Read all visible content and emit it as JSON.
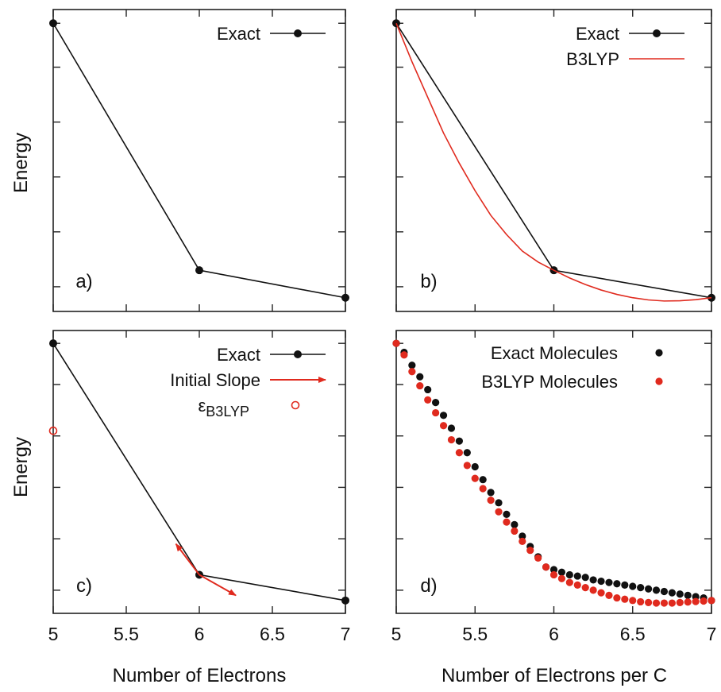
{
  "figure": {
    "ylabel_top": "Energy",
    "ylabel_bottom": "Energy",
    "xlabel_left": "Number of Electrons",
    "xlabel_right": "Number of Electrons per C"
  },
  "colors": {
    "exact": "#111111",
    "b3lyp": "#e02a1e",
    "frame": "#222222"
  },
  "chart_data": [
    {
      "panel": "a)",
      "type": "line",
      "title": "",
      "xlabel": "",
      "ylabel": "Energy",
      "xlim": [
        5,
        7
      ],
      "ylim": [
        -0.05,
        1.05
      ],
      "x_ticks": [
        5,
        5.5,
        6,
        6.5,
        7
      ],
      "x_tick_labels_shown": false,
      "y_ticks": [
        0.04,
        0.24,
        0.44,
        0.64,
        0.84,
        1.0
      ],
      "y_tick_labels_shown": false,
      "legend": {
        "position": "top-right",
        "entries": [
          "Exact"
        ]
      },
      "series": [
        {
          "name": "Exact",
          "color": "#111111",
          "x": [
            5,
            6,
            7
          ],
          "y": [
            1.0,
            0.1,
            0.0
          ]
        }
      ]
    },
    {
      "panel": "b)",
      "type": "line",
      "title": "",
      "xlabel": "",
      "ylabel": "",
      "xlim": [
        5,
        7
      ],
      "ylim": [
        -0.05,
        1.05
      ],
      "x_ticks": [
        5,
        5.5,
        6,
        6.5,
        7
      ],
      "x_tick_labels_shown": false,
      "y_ticks": [
        0.04,
        0.24,
        0.44,
        0.64,
        0.84,
        1.0
      ],
      "y_tick_labels_shown": false,
      "legend": {
        "position": "top-right",
        "entries": [
          "Exact",
          "B3LYP"
        ]
      },
      "series": [
        {
          "name": "Exact",
          "color": "#111111",
          "x": [
            5,
            6,
            7
          ],
          "y": [
            1.0,
            0.1,
            0.0
          ]
        },
        {
          "name": "B3LYP",
          "color": "#e02a1e",
          "x": [
            5.0,
            5.1,
            5.2,
            5.3,
            5.4,
            5.5,
            5.6,
            5.7,
            5.8,
            5.9,
            6.0,
            6.1,
            6.2,
            6.3,
            6.4,
            6.5,
            6.6,
            6.7,
            6.8,
            6.9,
            7.0
          ],
          "y": [
            1.0,
            0.86,
            0.73,
            0.6,
            0.49,
            0.39,
            0.3,
            0.23,
            0.17,
            0.13,
            0.1,
            0.072,
            0.048,
            0.028,
            0.012,
            0.0,
            -0.008,
            -0.012,
            -0.011,
            -0.007,
            0.0
          ]
        }
      ]
    },
    {
      "panel": "c)",
      "type": "line",
      "title": "",
      "xlabel": "Number of Electrons",
      "ylabel": "Energy",
      "xlim": [
        5,
        7
      ],
      "ylim": [
        -0.05,
        1.05
      ],
      "x_ticks": [
        5,
        5.5,
        6,
        6.5,
        7
      ],
      "x_tick_labels": [
        "5",
        "5.5",
        "6",
        "6.5",
        "7"
      ],
      "y_ticks": [
        0.04,
        0.24,
        0.44,
        0.64,
        0.84,
        1.0
      ],
      "y_tick_labels_shown": false,
      "legend": {
        "position": "top-right",
        "entries": [
          "Exact",
          "Initial Slope",
          "εB3LYP"
        ]
      },
      "series": [
        {
          "name": "Exact",
          "color": "#111111",
          "x": [
            5,
            6,
            7
          ],
          "y": [
            1.0,
            0.1,
            0.0
          ]
        },
        {
          "name": "εB3LYP",
          "color": "#e02a1e",
          "x": [
            5.0
          ],
          "y": [
            0.66
          ]
        }
      ],
      "arrows": [
        {
          "name": "Initial Slope",
          "color": "#e02a1e",
          "from": [
            6.0,
            0.1
          ],
          "to": [
            5.84,
            0.22
          ]
        },
        {
          "name": "Initial Slope",
          "color": "#e02a1e",
          "from": [
            6.0,
            0.1
          ],
          "to": [
            6.25,
            0.02
          ]
        }
      ]
    },
    {
      "panel": "d)",
      "type": "scatter",
      "title": "",
      "xlabel": "Number of Electrons per C",
      "ylabel": "",
      "xlim": [
        5,
        7
      ],
      "ylim": [
        -0.05,
        1.05
      ],
      "x_ticks": [
        5,
        5.5,
        6,
        6.5,
        7
      ],
      "x_tick_labels": [
        "5",
        "5.5",
        "6",
        "6.5",
        "7"
      ],
      "y_ticks": [
        0.04,
        0.24,
        0.44,
        0.64,
        0.84,
        1.0
      ],
      "y_tick_labels_shown": false,
      "legend": {
        "position": "top-right",
        "entries": [
          "Exact Molecules",
          "B3LYP Molecules"
        ]
      },
      "series": [
        {
          "name": "Exact Molecules",
          "color": "#111111",
          "x": [
            5.0,
            5.05,
            5.1,
            5.15,
            5.2,
            5.25,
            5.3,
            5.35,
            5.4,
            5.45,
            5.5,
            5.55,
            5.6,
            5.65,
            5.7,
            5.75,
            5.8,
            5.85,
            5.9,
            5.95,
            6.0,
            6.05,
            6.1,
            6.15,
            6.2,
            6.25,
            6.3,
            6.35,
            6.4,
            6.45,
            6.5,
            6.55,
            6.6,
            6.65,
            6.7,
            6.75,
            6.8,
            6.85,
            6.9,
            6.95,
            7.0
          ],
          "y": [
            1.0,
            0.965,
            0.915,
            0.87,
            0.82,
            0.77,
            0.72,
            0.67,
            0.62,
            0.575,
            0.52,
            0.47,
            0.42,
            0.38,
            0.335,
            0.295,
            0.25,
            0.21,
            0.17,
            0.13,
            0.12,
            0.11,
            0.1,
            0.095,
            0.09,
            0.08,
            0.075,
            0.07,
            0.065,
            0.06,
            0.055,
            0.05,
            0.045,
            0.04,
            0.035,
            0.03,
            0.025,
            0.02,
            0.015,
            0.01,
            0.0
          ]
        },
        {
          "name": "B3LYP Molecules",
          "color": "#e02a1e",
          "x": [
            5.0,
            5.05,
            5.1,
            5.15,
            5.2,
            5.25,
            5.3,
            5.35,
            5.4,
            5.45,
            5.5,
            5.55,
            5.6,
            5.65,
            5.7,
            5.75,
            5.8,
            5.85,
            5.9,
            5.95,
            6.0,
            6.05,
            6.1,
            6.15,
            6.2,
            6.25,
            6.3,
            6.35,
            6.4,
            6.45,
            6.5,
            6.55,
            6.6,
            6.65,
            6.7,
            6.75,
            6.8,
            6.85,
            6.9,
            6.95,
            7.0
          ],
          "y": [
            1.0,
            0.955,
            0.89,
            0.835,
            0.78,
            0.73,
            0.68,
            0.625,
            0.575,
            0.525,
            0.475,
            0.435,
            0.39,
            0.345,
            0.305,
            0.27,
            0.23,
            0.195,
            0.165,
            0.13,
            0.1,
            0.085,
            0.07,
            0.06,
            0.05,
            0.04,
            0.03,
            0.02,
            0.01,
            0.005,
            0.0,
            -0.005,
            -0.008,
            -0.01,
            -0.01,
            -0.01,
            -0.008,
            -0.006,
            -0.004,
            -0.002,
            0.0
          ]
        }
      ]
    }
  ]
}
